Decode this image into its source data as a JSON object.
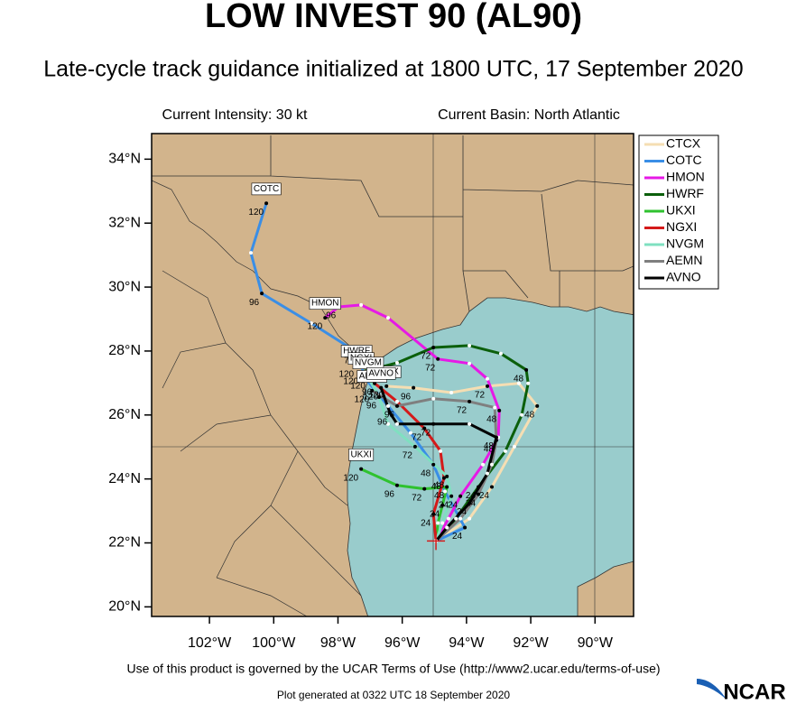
{
  "chart_data": {
    "type": "track-map",
    "title": "LOW INVEST 90 (AL90)",
    "subtitle": "Late-cycle track guidance initialized at 1800 UTC, 17 September 2020",
    "annotations": [
      "Current Intensity: 30 kt",
      "Current Basin: North Atlantic"
    ],
    "xlim": [
      -103.8,
      -88.8
    ],
    "ylim": [
      19.7,
      34.8
    ],
    "xticks": [
      {
        "value": -102,
        "label": "102°W"
      },
      {
        "value": -100,
        "label": "100°W"
      },
      {
        "value": -98,
        "label": "98°W"
      },
      {
        "value": -96,
        "label": "96°W"
      },
      {
        "value": -94,
        "label": "94°W"
      },
      {
        "value": -92,
        "label": "92°W"
      },
      {
        "value": -90,
        "label": "90°W"
      }
    ],
    "yticks": [
      {
        "value": 20,
        "label": "20°N"
      },
      {
        "value": 22,
        "label": "22°N"
      },
      {
        "value": 24,
        "label": "24°N"
      },
      {
        "value": 26,
        "label": "26°N"
      },
      {
        "value": 28,
        "label": "28°N"
      },
      {
        "value": 30,
        "label": "30°N"
      },
      {
        "value": 32,
        "label": "32°N"
      },
      {
        "value": 34,
        "label": "34°N"
      }
    ],
    "legend": "right",
    "series": [
      {
        "name": "CTCX",
        "color": "#f5deb3",
        "x": [
          -94.95,
          -93.91,
          -93.21,
          -92.51,
          -91.8,
          -92.37,
          -93.35,
          -94.47,
          -95.65,
          -96.49
        ],
        "y": [
          22.06,
          22.76,
          23.75,
          25.01,
          26.28,
          26.99,
          26.9,
          26.7,
          26.85,
          26.9
        ],
        "hours": [
          null,
          null,
          24,
          null,
          48,
          null,
          72,
          null,
          96,
          120
        ]
      },
      {
        "name": "COTC",
        "color": "#3a8ee6",
        "x": [
          -94.95,
          -94.05,
          -94.67,
          -95.03,
          -95.74,
          -96.44,
          -97.14,
          -97.42,
          -98.83,
          -100.37,
          -100.71,
          -100.23
        ],
        "y": [
          22.06,
          22.48,
          23.61,
          24.45,
          25.44,
          26.28,
          27.13,
          27.97,
          28.87,
          29.8,
          31.07,
          32.62
        ],
        "hours": [
          null,
          24,
          null,
          48,
          null,
          null,
          null,
          72,
          null,
          96,
          null,
          120
        ]
      },
      {
        "name": "HMON",
        "color": "#e619e6",
        "x": [
          -94.95,
          -94.56,
          -94.19,
          -93.49,
          -93.01,
          -92.98,
          -93.35,
          -93.91,
          -94.89,
          -96.44,
          -97.28,
          -97.98,
          -98.4
        ],
        "y": [
          22.06,
          22.76,
          23.46,
          24.45,
          25.3,
          26.14,
          27.13,
          27.61,
          27.75,
          29.04,
          29.44,
          29.38,
          29.04
        ],
        "hours": [
          null,
          null,
          24,
          null,
          null,
          48,
          null,
          null,
          72,
          null,
          null,
          96,
          120
        ]
      },
      {
        "name": "HWRF",
        "color": "#0b5f0b",
        "x": [
          -94.95,
          -94.33,
          -93.63,
          -92.79,
          -92.28,
          -92.08,
          -92.14,
          -92.93,
          -93.91,
          -95.03,
          -96.16,
          -97.0,
          -97.42
        ],
        "y": [
          22.06,
          22.76,
          23.75,
          24.87,
          26.0,
          26.99,
          27.41,
          27.92,
          28.17,
          28.11,
          27.63,
          27.41,
          27.55
        ],
        "hours": [
          null,
          null,
          24,
          null,
          null,
          null,
          48,
          null,
          null,
          72,
          null,
          96,
          120
        ]
      },
      {
        "name": "UKXI",
        "color": "#2fc22f",
        "x": [
          -94.95,
          -94.89,
          -94.75,
          -94.61,
          -95.31,
          -96.16,
          -97.28
        ],
        "y": [
          22.06,
          22.62,
          23.18,
          23.75,
          23.69,
          23.8,
          24.31
        ],
        "hours": [
          null,
          null,
          24,
          48,
          72,
          96,
          120
        ]
      },
      {
        "name": "NGXI",
        "color": "#d41a1a",
        "x": [
          -94.95,
          -95.03,
          -94.7,
          -94.81,
          -95.31,
          -96.16,
          -96.86,
          -97.28
        ],
        "y": [
          22.06,
          22.9,
          24.03,
          24.87,
          25.58,
          26.42,
          26.99,
          27.32
        ],
        "hours": [
          null,
          24,
          48,
          null,
          72,
          null,
          96,
          120
        ]
      },
      {
        "name": "NVGM",
        "color": "#7fe0c0",
        "x": [
          -94.95,
          -94.75,
          -94.47,
          -94.61,
          -95.6,
          -96.44,
          -96.72,
          -97.06
        ],
        "y": [
          22.06,
          22.62,
          23.46,
          24.08,
          25.01,
          25.72,
          26.56,
          27.18
        ],
        "hours": [
          null,
          null,
          24,
          48,
          72,
          null,
          96,
          120
        ]
      },
      {
        "name": "AEMN",
        "color": "#7f7f7f",
        "x": [
          -94.95,
          -94.19,
          -93.63,
          -93.21,
          -93.07,
          -93.12,
          -93.91,
          -95.03,
          -96.16,
          -96.94
        ],
        "y": [
          22.06,
          22.76,
          23.52,
          24.45,
          25.21,
          26.23,
          26.42,
          26.51,
          26.28,
          26.76
        ],
        "hours": [
          null,
          null,
          24,
          null,
          48,
          null,
          72,
          null,
          96,
          120
        ]
      },
      {
        "name": "AVNO",
        "color": "#000000",
        "x": [
          -94.95,
          -94.61,
          -93.91,
          -93.35,
          -93.07,
          -93.91,
          -95.03,
          -96.16,
          -96.38,
          -96.66
        ],
        "y": [
          22.06,
          22.48,
          23.24,
          24.17,
          25.3,
          25.72,
          25.72,
          25.72,
          26.06,
          26.85
        ],
        "hours": [
          null,
          null,
          24,
          null,
          48,
          null,
          72,
          null,
          96,
          120
        ]
      }
    ]
  },
  "footer": {
    "terms": "Use of this product is governed by the UCAR Terms of Use (http://www2.ucar.edu/terms-of-use)",
    "generated": "Plot generated at 0322 UTC   18 September 2020",
    "logo": "NCAR"
  }
}
